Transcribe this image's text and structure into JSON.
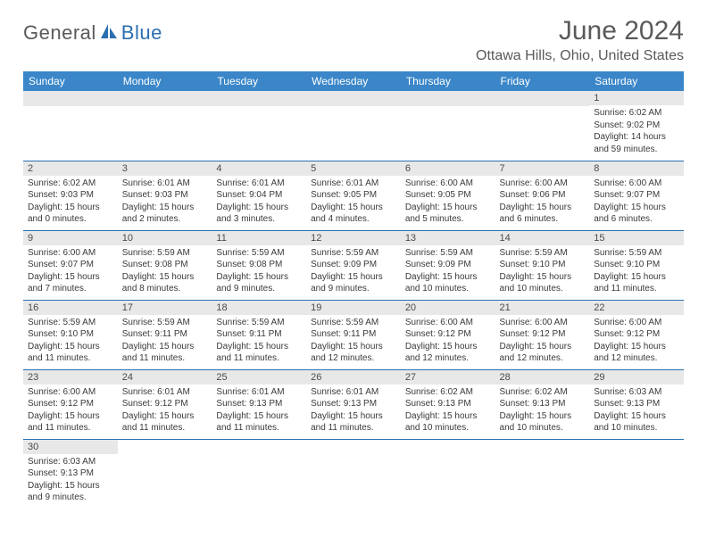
{
  "logo": {
    "part1": "General",
    "part2": "Blue"
  },
  "title": "June 2024",
  "location": "Ottawa Hills, Ohio, United States",
  "colors": {
    "header_bg": "#3a86c8",
    "header_text": "#ffffff",
    "daynum_bg": "#e8e8e8",
    "border": "#2b6fb0",
    "logo_gray": "#5a5a5a",
    "logo_blue": "#2b6fb0"
  },
  "day_headers": [
    "Sunday",
    "Monday",
    "Tuesday",
    "Wednesday",
    "Thursday",
    "Friday",
    "Saturday"
  ],
  "weeks": [
    [
      null,
      null,
      null,
      null,
      null,
      null,
      {
        "n": "1",
        "sr": "Sunrise: 6:02 AM",
        "ss": "Sunset: 9:02 PM",
        "dl1": "Daylight: 14 hours",
        "dl2": "and 59 minutes."
      }
    ],
    [
      {
        "n": "2",
        "sr": "Sunrise: 6:02 AM",
        "ss": "Sunset: 9:03 PM",
        "dl1": "Daylight: 15 hours",
        "dl2": "and 0 minutes."
      },
      {
        "n": "3",
        "sr": "Sunrise: 6:01 AM",
        "ss": "Sunset: 9:03 PM",
        "dl1": "Daylight: 15 hours",
        "dl2": "and 2 minutes."
      },
      {
        "n": "4",
        "sr": "Sunrise: 6:01 AM",
        "ss": "Sunset: 9:04 PM",
        "dl1": "Daylight: 15 hours",
        "dl2": "and 3 minutes."
      },
      {
        "n": "5",
        "sr": "Sunrise: 6:01 AM",
        "ss": "Sunset: 9:05 PM",
        "dl1": "Daylight: 15 hours",
        "dl2": "and 4 minutes."
      },
      {
        "n": "6",
        "sr": "Sunrise: 6:00 AM",
        "ss": "Sunset: 9:05 PM",
        "dl1": "Daylight: 15 hours",
        "dl2": "and 5 minutes."
      },
      {
        "n": "7",
        "sr": "Sunrise: 6:00 AM",
        "ss": "Sunset: 9:06 PM",
        "dl1": "Daylight: 15 hours",
        "dl2": "and 6 minutes."
      },
      {
        "n": "8",
        "sr": "Sunrise: 6:00 AM",
        "ss": "Sunset: 9:07 PM",
        "dl1": "Daylight: 15 hours",
        "dl2": "and 6 minutes."
      }
    ],
    [
      {
        "n": "9",
        "sr": "Sunrise: 6:00 AM",
        "ss": "Sunset: 9:07 PM",
        "dl1": "Daylight: 15 hours",
        "dl2": "and 7 minutes."
      },
      {
        "n": "10",
        "sr": "Sunrise: 5:59 AM",
        "ss": "Sunset: 9:08 PM",
        "dl1": "Daylight: 15 hours",
        "dl2": "and 8 minutes."
      },
      {
        "n": "11",
        "sr": "Sunrise: 5:59 AM",
        "ss": "Sunset: 9:08 PM",
        "dl1": "Daylight: 15 hours",
        "dl2": "and 9 minutes."
      },
      {
        "n": "12",
        "sr": "Sunrise: 5:59 AM",
        "ss": "Sunset: 9:09 PM",
        "dl1": "Daylight: 15 hours",
        "dl2": "and 9 minutes."
      },
      {
        "n": "13",
        "sr": "Sunrise: 5:59 AM",
        "ss": "Sunset: 9:09 PM",
        "dl1": "Daylight: 15 hours",
        "dl2": "and 10 minutes."
      },
      {
        "n": "14",
        "sr": "Sunrise: 5:59 AM",
        "ss": "Sunset: 9:10 PM",
        "dl1": "Daylight: 15 hours",
        "dl2": "and 10 minutes."
      },
      {
        "n": "15",
        "sr": "Sunrise: 5:59 AM",
        "ss": "Sunset: 9:10 PM",
        "dl1": "Daylight: 15 hours",
        "dl2": "and 11 minutes."
      }
    ],
    [
      {
        "n": "16",
        "sr": "Sunrise: 5:59 AM",
        "ss": "Sunset: 9:10 PM",
        "dl1": "Daylight: 15 hours",
        "dl2": "and 11 minutes."
      },
      {
        "n": "17",
        "sr": "Sunrise: 5:59 AM",
        "ss": "Sunset: 9:11 PM",
        "dl1": "Daylight: 15 hours",
        "dl2": "and 11 minutes."
      },
      {
        "n": "18",
        "sr": "Sunrise: 5:59 AM",
        "ss": "Sunset: 9:11 PM",
        "dl1": "Daylight: 15 hours",
        "dl2": "and 11 minutes."
      },
      {
        "n": "19",
        "sr": "Sunrise: 5:59 AM",
        "ss": "Sunset: 9:11 PM",
        "dl1": "Daylight: 15 hours",
        "dl2": "and 12 minutes."
      },
      {
        "n": "20",
        "sr": "Sunrise: 6:00 AM",
        "ss": "Sunset: 9:12 PM",
        "dl1": "Daylight: 15 hours",
        "dl2": "and 12 minutes."
      },
      {
        "n": "21",
        "sr": "Sunrise: 6:00 AM",
        "ss": "Sunset: 9:12 PM",
        "dl1": "Daylight: 15 hours",
        "dl2": "and 12 minutes."
      },
      {
        "n": "22",
        "sr": "Sunrise: 6:00 AM",
        "ss": "Sunset: 9:12 PM",
        "dl1": "Daylight: 15 hours",
        "dl2": "and 12 minutes."
      }
    ],
    [
      {
        "n": "23",
        "sr": "Sunrise: 6:00 AM",
        "ss": "Sunset: 9:12 PM",
        "dl1": "Daylight: 15 hours",
        "dl2": "and 11 minutes."
      },
      {
        "n": "24",
        "sr": "Sunrise: 6:01 AM",
        "ss": "Sunset: 9:12 PM",
        "dl1": "Daylight: 15 hours",
        "dl2": "and 11 minutes."
      },
      {
        "n": "25",
        "sr": "Sunrise: 6:01 AM",
        "ss": "Sunset: 9:13 PM",
        "dl1": "Daylight: 15 hours",
        "dl2": "and 11 minutes."
      },
      {
        "n": "26",
        "sr": "Sunrise: 6:01 AM",
        "ss": "Sunset: 9:13 PM",
        "dl1": "Daylight: 15 hours",
        "dl2": "and 11 minutes."
      },
      {
        "n": "27",
        "sr": "Sunrise: 6:02 AM",
        "ss": "Sunset: 9:13 PM",
        "dl1": "Daylight: 15 hours",
        "dl2": "and 10 minutes."
      },
      {
        "n": "28",
        "sr": "Sunrise: 6:02 AM",
        "ss": "Sunset: 9:13 PM",
        "dl1": "Daylight: 15 hours",
        "dl2": "and 10 minutes."
      },
      {
        "n": "29",
        "sr": "Sunrise: 6:03 AM",
        "ss": "Sunset: 9:13 PM",
        "dl1": "Daylight: 15 hours",
        "dl2": "and 10 minutes."
      }
    ],
    [
      {
        "n": "30",
        "sr": "Sunrise: 6:03 AM",
        "ss": "Sunset: 9:13 PM",
        "dl1": "Daylight: 15 hours",
        "dl2": "and 9 minutes."
      },
      null,
      null,
      null,
      null,
      null,
      null
    ]
  ]
}
